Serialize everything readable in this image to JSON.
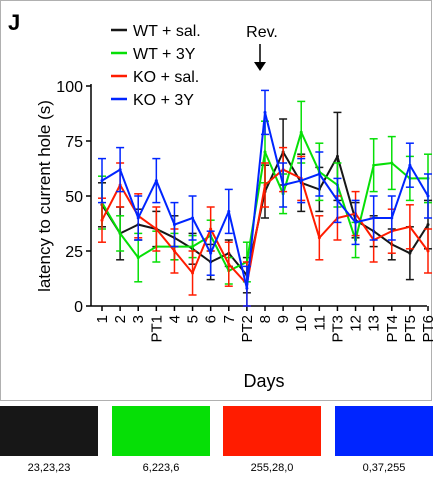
{
  "panel_letter": "J",
  "annotation": "Rev.",
  "chart_data": {
    "type": "line",
    "title": "",
    "xlabel": "Days",
    "ylabel": "latency to current hole (s)",
    "ylim": [
      0,
      100
    ],
    "yticks": [
      0,
      25,
      50,
      75,
      100
    ],
    "grid": false,
    "legend_position": "top-left",
    "categories": [
      "1",
      "2",
      "3",
      "PT1",
      "4",
      "5",
      "6",
      "7",
      "PT2",
      "8",
      "9",
      "10",
      "11",
      "PT3",
      "12",
      "13",
      "PT4",
      "PT5",
      "PT6"
    ],
    "series": [
      {
        "name": "WT + sal.",
        "color": "#171717",
        "values": [
          46,
          33,
          37,
          35,
          31,
          26,
          20,
          24,
          14,
          52,
          70,
          56,
          53,
          68,
          39,
          34,
          28,
          24,
          37
        ],
        "errors": [
          10,
          12,
          7,
          8,
          10,
          7,
          8,
          6,
          8,
          12,
          15,
          13,
          10,
          20,
          8,
          7,
          7,
          12,
          11
        ]
      },
      {
        "name": "WT + 3Y",
        "color": "#06df06",
        "values": [
          47,
          33,
          22,
          27,
          27,
          27,
          32,
          16,
          20,
          70,
          51,
          79,
          61,
          55,
          30,
          64,
          65,
          58,
          58
        ],
        "errors": [
          12,
          8,
          11,
          7,
          6,
          5,
          7,
          6,
          9,
          14,
          9,
          14,
          13,
          10,
          8,
          12,
          12,
          10,
          11
        ]
      },
      {
        "name": "KO + sal.",
        "color": "#ff1c00",
        "values": [
          39,
          55,
          41,
          35,
          25,
          15,
          35,
          19,
          10,
          55,
          62,
          58,
          31,
          40,
          42,
          30,
          34,
          36,
          25
        ]
      },
      {
        "name": "KO + 3Y",
        "color": "#0025ff",
        "values": [
          57,
          62,
          40,
          57,
          37,
          40,
          24,
          43,
          8,
          88,
          55,
          57,
          60,
          48,
          38,
          40,
          40,
          64,
          50
        ]
      }
    ]
  },
  "swatches": [
    {
      "color": "#171717",
      "label": "23,23,23"
    },
    {
      "color": "#06df06",
      "label": "6,223,6"
    },
    {
      "color": "#ff1c00",
      "label": "255,28,0"
    },
    {
      "color": "#0025ff",
      "label": "0,37,255"
    }
  ]
}
